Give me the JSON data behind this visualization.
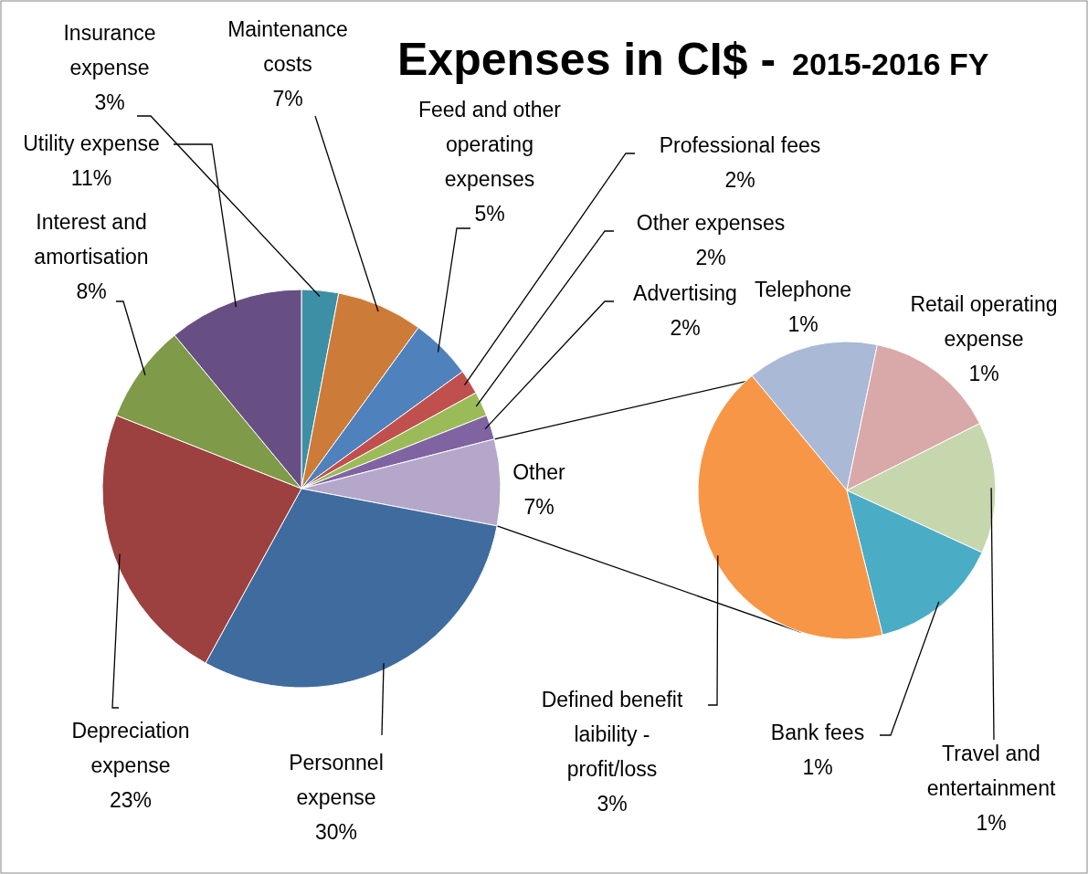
{
  "chart_data": [
    {
      "type": "pie",
      "title": "Expenses in CI$  -",
      "subtitle": "2015-2016 FY",
      "categories": [
        "Insurance expense",
        "Maintenance costs",
        "Feed and other operating expenses",
        "Professional fees",
        "Other expenses",
        "Advertising",
        "Other",
        "Personnel expense",
        "Depreciation expense",
        "Interest and amortisation",
        "Utility expense"
      ],
      "values": [
        3,
        7,
        5,
        2,
        2,
        2,
        7,
        30,
        23,
        8,
        11
      ],
      "value_labels": [
        "3%",
        "7%",
        "5%",
        "2%",
        "2%",
        "2%",
        "7%",
        "30%",
        "23%",
        "8%",
        "11%"
      ],
      "colors": [
        "#3d8fa6",
        "#cc7b38",
        "#4f81bd",
        "#c0504d",
        "#9bbb59",
        "#8064a2",
        "#b4a7c9",
        "#3f6b9e",
        "#9c413f",
        "#7f9a48",
        "#674f84"
      ]
    },
    {
      "type": "pie",
      "categories": [
        "Telephone",
        "Retail operating expense",
        "Travel and entertainment",
        "Bank fees",
        "Defined benefit laibility - profit/loss"
      ],
      "values": [
        1,
        1,
        1,
        1,
        3
      ],
      "value_labels": [
        "1%",
        "1%",
        "1%",
        "1%",
        "3%"
      ],
      "colors": [
        "#a9b9d6",
        "#d9a8a8",
        "#c6d6ad",
        "#4bacc6",
        "#f79646"
      ]
    }
  ]
}
